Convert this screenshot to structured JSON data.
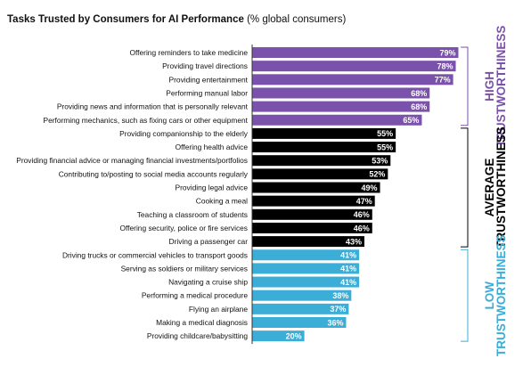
{
  "chart_data": {
    "type": "bar",
    "orientation": "horizontal",
    "title": "Tasks Trusted by Consumers for AI Performance",
    "subtitle": "(% global consumers)",
    "xlim": [
      0,
      100
    ],
    "value_suffix": "%",
    "colors": {
      "high": "#7b52ab",
      "average": "#000000",
      "low": "#3cadd6"
    },
    "groups": [
      {
        "key": "high",
        "label_line1": "HIGH",
        "label_line2": "TRUSTWORTHINESS",
        "categories": [
          "Offering reminders to take medicine",
          "Providing travel directions",
          "Providing entertainment",
          "Performing manual labor",
          "Providing news and information that is personally relevant",
          "Performing mechanics, such as fixing cars or other equipment"
        ],
        "values": [
          79,
          78,
          77,
          68,
          68,
          65
        ]
      },
      {
        "key": "average",
        "label_line1": "AVERAGE",
        "label_line2": "TRUSTWORTHINESS",
        "categories": [
          "Providing companionship to the elderly",
          "Offering health advice",
          "Providing financial advice or managing financial investments/portfolios",
          "Contributing to/posting to social media accounts regularly",
          "Providing legal advice",
          "Cooking a meal",
          "Teaching a classroom of students",
          "Offering security, police or fire services",
          "Driving a passenger car"
        ],
        "values": [
          55,
          55,
          53,
          52,
          49,
          47,
          46,
          46,
          43
        ]
      },
      {
        "key": "low",
        "label_line1": "LOW",
        "label_line2": "TRUSTWORTHINESS",
        "categories": [
          "Driving trucks or commercial vehicles to transport goods",
          "Serving as soldiers or military services",
          "Navigating a cruise ship",
          "Performing a medical procedure",
          "Flying an airplane",
          "Making a medical diagnosis",
          "Providing childcare/babysitting"
        ],
        "values": [
          41,
          41,
          41,
          38,
          37,
          36,
          20
        ]
      }
    ]
  }
}
